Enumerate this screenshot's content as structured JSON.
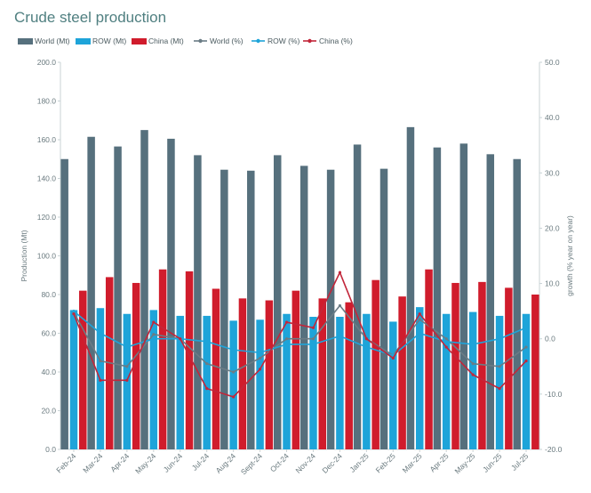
{
  "chart_data": {
    "type": "bar",
    "title": "Crude steel production",
    "categories": [
      "Feb-24",
      "Mar-24",
      "Apr-24",
      "May-24",
      "Jun-24",
      "Jul-24",
      "Aug-24",
      "Sept-24",
      "Oct-24",
      "Nov-24",
      "Dec-24",
      "Jan-25",
      "Feb-25",
      "Mar-25",
      "Apr-25",
      "May-25",
      "Jun-25",
      "Jul-25"
    ],
    "series": [
      {
        "name": "World (Mt)",
        "kind": "bar",
        "axis": "left",
        "color": "#56707d",
        "values": [
          150,
          161.5,
          156.5,
          165,
          160.5,
          152,
          144.5,
          144,
          152,
          146.5,
          144.5,
          157.5,
          145,
          166.5,
          156,
          158,
          152.5,
          150
        ]
      },
      {
        "name": "ROW (Mt)",
        "kind": "bar",
        "axis": "left",
        "color": "#1ea4d9",
        "values": [
          72,
          73,
          70,
          72,
          69,
          69,
          66.5,
          67,
          70,
          68.5,
          68.5,
          70,
          66,
          73.5,
          70,
          71,
          69,
          70
        ]
      },
      {
        "name": "China (Mt)",
        "kind": "bar",
        "axis": "left",
        "color": "#d01c2c",
        "values": [
          82,
          89,
          86,
          93,
          92,
          83,
          78,
          77,
          82,
          78,
          76,
          87.5,
          79,
          93,
          86,
          86.5,
          83.5,
          80
        ]
      },
      {
        "name": "World (%)",
        "kind": "line",
        "axis": "right",
        "color": "#6b7c85",
        "values": [
          4.8,
          -4,
          -5,
          0.8,
          0,
          -4.5,
          -6,
          -3.5,
          0,
          0,
          6,
          0,
          -3,
          3.5,
          0,
          -4.5,
          -5,
          -1.5
        ]
      },
      {
        "name": "ROW (%)",
        "kind": "line",
        "axis": "right",
        "color": "#1ea4d9",
        "values": [
          5,
          1,
          -1.5,
          0,
          0,
          -0.5,
          -2,
          -2.5,
          -1,
          -1,
          0.5,
          -1.5,
          -3,
          1,
          -0.5,
          -1,
          0,
          2
        ]
      },
      {
        "name": "China (%)",
        "kind": "line",
        "axis": "right",
        "color": "#c2263a",
        "values": [
          4.5,
          -7.5,
          -7.5,
          3,
          0,
          -9,
          -10.5,
          -5.5,
          3,
          2,
          12,
          0,
          -3.5,
          4.5,
          -1.5,
          -6.5,
          -9,
          -4
        ]
      }
    ],
    "left_axis": {
      "label": "Production (Mt)",
      "ylim": [
        0,
        200
      ],
      "ticks": [
        "0.0",
        "20.0",
        "40.0",
        "60.0",
        "80.0",
        "100.0",
        "120.0",
        "140.0",
        "160.0",
        "180.0",
        "200.0"
      ]
    },
    "right_axis": {
      "label": "growth (% year on year)",
      "ylim": [
        -20,
        50
      ],
      "ticks": [
        "-20.0",
        "-10.0",
        "0.0",
        "10.0",
        "20.0",
        "30.0",
        "40.0",
        "50.0"
      ]
    },
    "grid": false,
    "legend_position": "top-left"
  }
}
